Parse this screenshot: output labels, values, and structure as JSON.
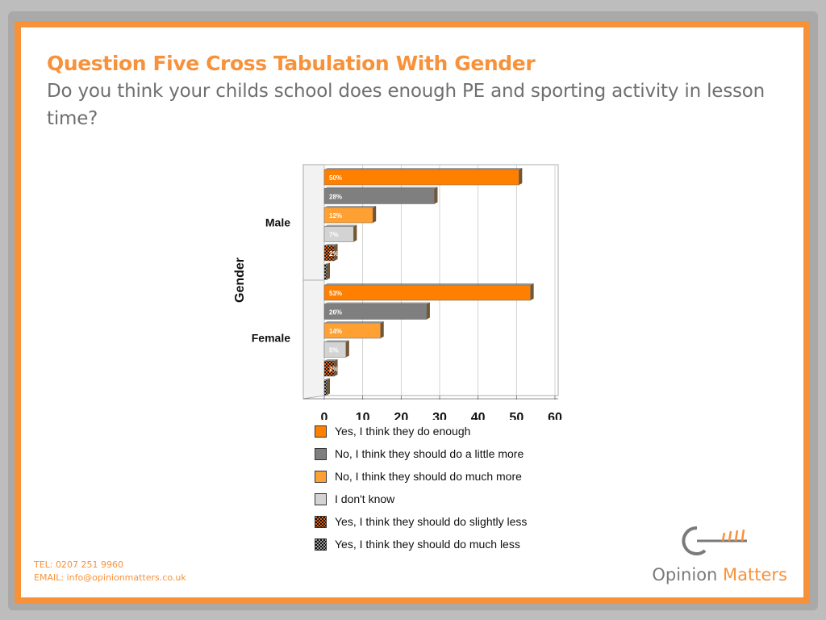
{
  "slide": {
    "title": "Question Five Cross Tabulation With Gender",
    "subtitle": "Do you think your childs school does enough PE and sporting activity in lesson time?"
  },
  "colors": {
    "accent": "#f7923a",
    "bar_enough": "#ff7f00",
    "bar_little_more": "#7f7f7f",
    "bar_much_more": "#ffa033",
    "bar_dont_know": "#d3d3d3",
    "bar_slightly_less": "#e06010",
    "bar_much_less": "#333333"
  },
  "chart_data": {
    "type": "bar",
    "orientation": "horizontal",
    "ylabel": "Gender",
    "xlabel": "",
    "categories": [
      "Male",
      "Female"
    ],
    "xlim": [
      0,
      60
    ],
    "xticks": [
      0,
      10,
      20,
      30,
      40,
      50,
      60
    ],
    "grid": true,
    "legend_position": "bottom",
    "series": [
      {
        "name": "Yes, I think they do enough",
        "values": [
          50,
          53
        ],
        "labels": [
          "50%",
          "53%"
        ],
        "pattern": "solid"
      },
      {
        "name": "No, I think they should do a little more",
        "values": [
          28,
          26
        ],
        "labels": [
          "28%",
          "26%"
        ],
        "pattern": "solid"
      },
      {
        "name": "No, I think they should do much more",
        "values": [
          12,
          14
        ],
        "labels": [
          "12%",
          "14%"
        ],
        "pattern": "solid"
      },
      {
        "name": "I don't know",
        "values": [
          7,
          5
        ],
        "labels": [
          "7%",
          "5%"
        ],
        "pattern": "solid"
      },
      {
        "name": "Yes, I think they should do slightly less",
        "values": [
          2,
          2
        ],
        "labels": [
          "2%",
          "2%"
        ],
        "pattern": "checker-orange"
      },
      {
        "name": "Yes, I think they should do much less",
        "values": [
          0,
          0
        ],
        "labels": [
          "",
          ""
        ],
        "pattern": "checker-dark"
      }
    ]
  },
  "footer": {
    "tel": "TEL: 0207 251 9960",
    "email": "EMAIL: info@opinionmatters.co.uk"
  },
  "logo": {
    "word1": "Opinion",
    "word2": "Matters",
    "icon": "key-icon"
  }
}
